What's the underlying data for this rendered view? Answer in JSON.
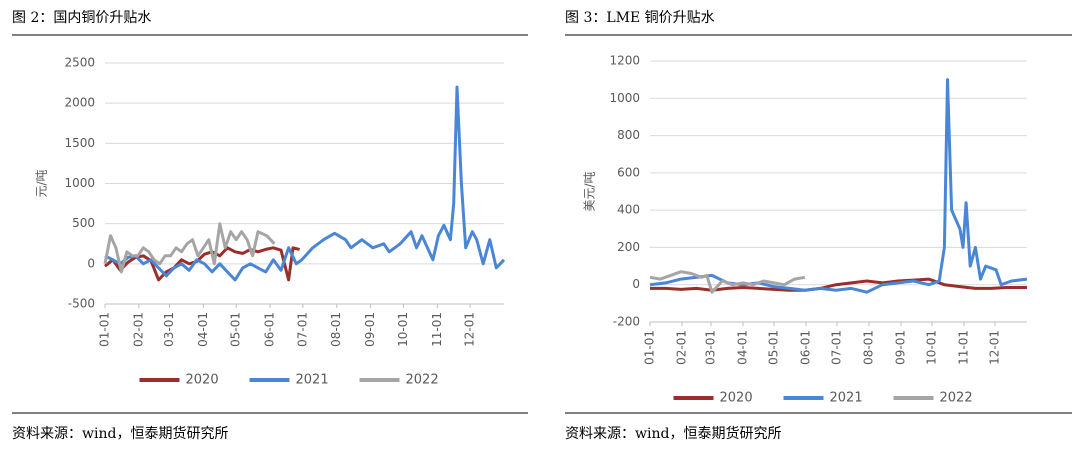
{
  "chart_data": [
    {
      "type": "line",
      "title": "图 2：国内铜价升贴水",
      "y_label": "元/吨",
      "source": "资料来源：wind，恒泰期货研究所",
      "xlim": [
        0,
        365
      ],
      "xticks": [
        {
          "value": 0,
          "label": "01-01"
        },
        {
          "value": 31,
          "label": "02-01"
        },
        {
          "value": 59,
          "label": "03-01"
        },
        {
          "value": 90,
          "label": "04-01"
        },
        {
          "value": 120,
          "label": "05-01"
        },
        {
          "value": 151,
          "label": "06-01"
        },
        {
          "value": 181,
          "label": "07-01"
        },
        {
          "value": 212,
          "label": "08-01"
        },
        {
          "value": 243,
          "label": "09-01"
        },
        {
          "value": 273,
          "label": "10-01"
        },
        {
          "value": 304,
          "label": "11-01"
        },
        {
          "value": 334,
          "label": "12-01"
        }
      ],
      "ylim": [
        -500,
        2500
      ],
      "yticks": [
        -500,
        0,
        500,
        1000,
        1500,
        2000,
        2500
      ],
      "grid": true,
      "legend": "bottom",
      "series": [
        {
          "name": "2020",
          "color": "#9b2d2a",
          "x": [
            0,
            7,
            14,
            21,
            28,
            35,
            42,
            49,
            56,
            63,
            70,
            77,
            84,
            91,
            98,
            105,
            112,
            119,
            126,
            133,
            140,
            147,
            154,
            161,
            168,
            172,
            178
          ],
          "values": [
            -30,
            50,
            -80,
            20,
            80,
            100,
            40,
            -200,
            -100,
            -50,
            50,
            0,
            30,
            120,
            150,
            100,
            200,
            150,
            130,
            180,
            150,
            180,
            200,
            170,
            -200,
            200,
            180
          ]
        },
        {
          "name": "2021",
          "color": "#4a86d6",
          "x": [
            0,
            7,
            14,
            21,
            28,
            35,
            42,
            49,
            56,
            63,
            70,
            77,
            84,
            91,
            98,
            105,
            112,
            119,
            126,
            133,
            140,
            147,
            154,
            161,
            168,
            175,
            180,
            190,
            200,
            210,
            220,
            225,
            235,
            245,
            255,
            260,
            270,
            280,
            285,
            290,
            300,
            305,
            310,
            316,
            319,
            322,
            326,
            330,
            336,
            340,
            346,
            352,
            358,
            365
          ],
          "values": [
            100,
            50,
            0,
            80,
            100,
            0,
            50,
            -50,
            -150,
            -50,
            0,
            -80,
            50,
            0,
            -100,
            0,
            -100,
            -200,
            -50,
            0,
            -50,
            -100,
            50,
            -80,
            200,
            0,
            50,
            200,
            300,
            380,
            300,
            200,
            300,
            200,
            250,
            150,
            250,
            400,
            200,
            350,
            50,
            350,
            480,
            300,
            750,
            2200,
            1000,
            200,
            400,
            300,
            0,
            300,
            -50,
            50
          ]
        },
        {
          "name": "2022",
          "color": "#a5a5a5",
          "x": [
            0,
            5,
            10,
            15,
            20,
            25,
            30,
            35,
            40,
            45,
            50,
            55,
            60,
            65,
            70,
            75,
            80,
            85,
            90,
            95,
            100,
            105,
            110,
            115,
            120,
            125,
            130,
            135,
            140,
            148,
            155
          ],
          "values": [
            0,
            350,
            200,
            -100,
            150,
            100,
            100,
            200,
            150,
            50,
            0,
            100,
            100,
            200,
            150,
            250,
            300,
            100,
            200,
            300,
            0,
            500,
            200,
            400,
            300,
            400,
            300,
            100,
            400,
            350,
            250
          ]
        }
      ]
    },
    {
      "type": "line",
      "title": "图 3：LME 铜价升贴水",
      "y_label": "美元/吨",
      "source": "资料来源：wind，恒泰期货研究所",
      "xlim": [
        0,
        365
      ],
      "xticks": [
        {
          "value": 0,
          "label": "01-01"
        },
        {
          "value": 31,
          "label": "02-01"
        },
        {
          "value": 59,
          "label": "03-01"
        },
        {
          "value": 90,
          "label": "04-01"
        },
        {
          "value": 120,
          "label": "05-01"
        },
        {
          "value": 151,
          "label": "06-01"
        },
        {
          "value": 181,
          "label": "07-01"
        },
        {
          "value": 212,
          "label": "08-01"
        },
        {
          "value": 243,
          "label": "09-01"
        },
        {
          "value": 273,
          "label": "10-01"
        },
        {
          "value": 304,
          "label": "11-01"
        },
        {
          "value": 334,
          "label": "12-01"
        }
      ],
      "ylim": [
        -200,
        1200
      ],
      "yticks": [
        -200,
        0,
        200,
        400,
        600,
        800,
        1000,
        1200
      ],
      "grid": true,
      "legend": "bottom",
      "series": [
        {
          "name": "2020",
          "color": "#9b2d2a",
          "x": [
            0,
            15,
            30,
            45,
            60,
            75,
            90,
            105,
            120,
            135,
            150,
            165,
            180,
            195,
            210,
            225,
            240,
            255,
            270,
            285,
            300,
            315,
            330,
            345,
            365
          ],
          "values": [
            -20,
            -20,
            -25,
            -20,
            -30,
            -20,
            -15,
            -20,
            -25,
            -30,
            -30,
            -20,
            0,
            10,
            20,
            10,
            20,
            25,
            30,
            0,
            -10,
            -20,
            -20,
            -15,
            -15
          ]
        },
        {
          "name": "2021",
          "color": "#4a86d6",
          "x": [
            0,
            15,
            30,
            45,
            60,
            75,
            90,
            105,
            120,
            135,
            150,
            165,
            180,
            195,
            210,
            225,
            240,
            255,
            270,
            280,
            285,
            288,
            292,
            300,
            303,
            306,
            310,
            315,
            320,
            325,
            335,
            340,
            350,
            365
          ],
          "values": [
            0,
            10,
            30,
            40,
            50,
            10,
            0,
            10,
            -10,
            -20,
            -30,
            -20,
            -30,
            -20,
            -40,
            0,
            10,
            20,
            0,
            20,
            200,
            1100,
            400,
            300,
            200,
            440,
            100,
            200,
            30,
            100,
            80,
            0,
            20,
            30
          ]
        },
        {
          "name": "2022",
          "color": "#a5a5a5",
          "x": [
            0,
            10,
            20,
            30,
            40,
            50,
            55,
            60,
            70,
            80,
            90,
            100,
            110,
            120,
            130,
            140,
            150
          ],
          "values": [
            40,
            30,
            50,
            70,
            60,
            40,
            50,
            -40,
            20,
            0,
            10,
            0,
            20,
            10,
            0,
            30,
            40
          ]
        }
      ]
    }
  ]
}
